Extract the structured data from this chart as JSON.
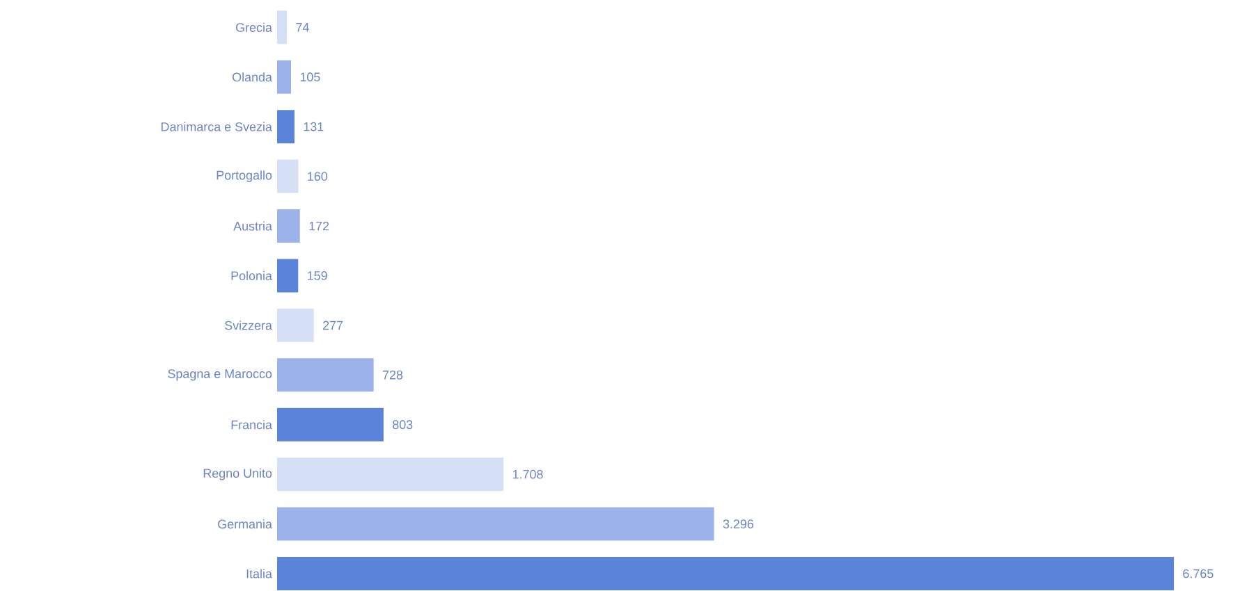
{
  "chart_data": {
    "type": "bar",
    "orientation": "horizontal",
    "categories": [
      "Grecia",
      "Olanda",
      "Danimarca e Svezia",
      "Portogallo",
      "Austria",
      "Polonia",
      "Svizzera",
      "Spagna e Marocco",
      "Francia",
      "Regno Unito",
      "Germania",
      "Italia"
    ],
    "values": [
      74,
      105,
      131,
      160,
      172,
      159,
      277,
      728,
      803,
      1708,
      3296,
      6765
    ],
    "value_labels": [
      "74",
      "105",
      "131",
      "160",
      "172",
      "159",
      "277",
      "728",
      "803",
      "1.708",
      "3.296",
      "6.765"
    ],
    "colors": [
      "#d5dff5",
      "#9cb2ea",
      "#5b83da",
      "#d5dff5",
      "#9cb2ea",
      "#5b83da",
      "#d5dff5",
      "#9cb2ea",
      "#5b83da",
      "#d5dff5",
      "#9cb2ea",
      "#5b83da"
    ]
  }
}
